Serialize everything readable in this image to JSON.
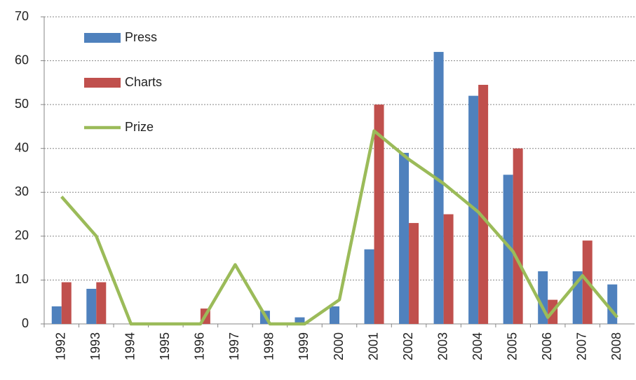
{
  "chart_data": {
    "type": "bar_line",
    "categories": [
      "1992",
      "1993",
      "1994",
      "1995",
      "1996",
      "1997",
      "1998",
      "1999",
      "2000",
      "2001",
      "2002",
      "2003",
      "2004",
      "2005",
      "2006",
      "2007",
      "2008"
    ],
    "series": [
      {
        "name": "Press",
        "type": "bar",
        "color": "#4f81bd",
        "values": [
          4,
          8,
          0,
          0,
          0,
          0,
          3,
          1.5,
          4,
          17,
          39,
          62,
          52,
          34,
          12,
          12,
          9
        ]
      },
      {
        "name": "Charts",
        "type": "bar",
        "color": "#c0504d",
        "values": [
          9.5,
          9.5,
          0,
          0,
          3.5,
          0,
          0,
          0,
          0,
          50,
          23,
          25,
          54.5,
          40,
          5.5,
          19,
          0
        ]
      },
      {
        "name": "Prize",
        "type": "line",
        "color": "#9bbb59",
        "values": [
          29,
          20,
          0,
          0,
          0,
          13.5,
          0,
          0,
          5.5,
          44,
          37.5,
          32,
          25.5,
          16.5,
          1.5,
          11,
          1.5
        ]
      }
    ],
    "ylim": [
      0,
      70
    ],
    "yticks": [
      0,
      10,
      20,
      30,
      40,
      50,
      60,
      70
    ],
    "grid": true,
    "legend": "upper left"
  }
}
